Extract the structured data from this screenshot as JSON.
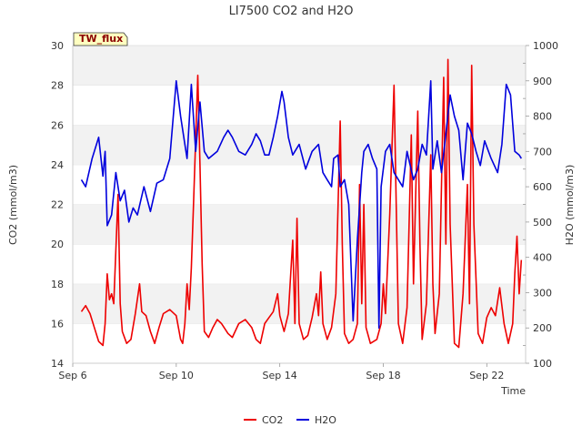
{
  "chart_data": {
    "type": "line",
    "title": "LI7500 CO2 and H2O",
    "xlabel": "Time",
    "ylabel": "CO2 (mmol/m3)",
    "y2label": "H2O (mmol/m3)",
    "site_tag": "TW_flux",
    "x_range": [
      "Sep 6",
      "Sep 23 12:00"
    ],
    "x_ticks": [
      "Sep 6",
      "Sep 10",
      "Sep 14",
      "Sep 18",
      "Sep 22"
    ],
    "ylim": [
      14,
      30
    ],
    "y_ticks": [
      14,
      16,
      18,
      20,
      22,
      24,
      26,
      28,
      30
    ],
    "y2lim": [
      100,
      1000
    ],
    "y2_ticks": [
      100,
      200,
      300,
      400,
      500,
      600,
      700,
      800,
      900,
      1000
    ],
    "grid": "alternating horizontal bands",
    "legend_position": "bottom-center",
    "series": [
      {
        "name": "CO2",
        "axis": "left",
        "color": "#ee0000",
        "points": [
          [
            "Sep 6 08:00",
            16.6
          ],
          [
            "Sep 6 12:00",
            16.9
          ],
          [
            "Sep 6 16:00",
            16.5
          ],
          [
            "Sep 6 20:00",
            15.8
          ],
          [
            "Sep 7 00:00",
            15.1
          ],
          [
            "Sep 7 04:00",
            14.9
          ],
          [
            "Sep 7 06:00",
            16.0
          ],
          [
            "Sep 7 08:00",
            18.5
          ],
          [
            "Sep 7 10:00",
            17.2
          ],
          [
            "Sep 7 12:00",
            17.5
          ],
          [
            "Sep 7 14:00",
            17.0
          ],
          [
            "Sep 7 18:00",
            22.5
          ],
          [
            "Sep 7 20:00",
            17.0
          ],
          [
            "Sep 7 22:00",
            15.6
          ],
          [
            "Sep 8 02:00",
            15.0
          ],
          [
            "Sep 8 06:00",
            15.2
          ],
          [
            "Sep 8 10:00",
            16.5
          ],
          [
            "Sep 8 14:00",
            18.0
          ],
          [
            "Sep 8 16:00",
            16.6
          ],
          [
            "Sep 8 20:00",
            16.4
          ],
          [
            "Sep 9 00:00",
            15.6
          ],
          [
            "Sep 9 04:00",
            15.0
          ],
          [
            "Sep 9 08:00",
            15.8
          ],
          [
            "Sep 9 12:00",
            16.5
          ],
          [
            "Sep 9 18:00",
            16.7
          ],
          [
            "Sep 10 00:00",
            16.4
          ],
          [
            "Sep 10 04:00",
            15.2
          ],
          [
            "Sep 10 06:00",
            15.0
          ],
          [
            "Sep 10 08:00",
            16.0
          ],
          [
            "Sep 10 10:00",
            18.0
          ],
          [
            "Sep 10 12:00",
            16.7
          ],
          [
            "Sep 10 14:00",
            18.8
          ],
          [
            "Sep 10 16:00",
            22.0
          ],
          [
            "Sep 10 20:00",
            28.5
          ],
          [
            "Sep 10 22:00",
            24.0
          ],
          [
            "Sep 11 00:00",
            19.0
          ],
          [
            "Sep 11 02:00",
            15.6
          ],
          [
            "Sep 11 06:00",
            15.3
          ],
          [
            "Sep 11 10:00",
            15.8
          ],
          [
            "Sep 11 14:00",
            16.2
          ],
          [
            "Sep 11 18:00",
            16.0
          ],
          [
            "Sep 12 00:00",
            15.5
          ],
          [
            "Sep 12 04:00",
            15.3
          ],
          [
            "Sep 12 10:00",
            16.0
          ],
          [
            "Sep 12 16:00",
            16.2
          ],
          [
            "Sep 12 22:00",
            15.8
          ],
          [
            "Sep 13 02:00",
            15.2
          ],
          [
            "Sep 13 06:00",
            15.0
          ],
          [
            "Sep 13 10:00",
            16.0
          ],
          [
            "Sep 13 14:00",
            16.3
          ],
          [
            "Sep 13 18:00",
            16.6
          ],
          [
            "Sep 13 22:00",
            17.5
          ],
          [
            "Sep 14 00:00",
            16.4
          ],
          [
            "Sep 14 04:00",
            15.6
          ],
          [
            "Sep 14 08:00",
            16.5
          ],
          [
            "Sep 14 12:00",
            20.2
          ],
          [
            "Sep 14 14:00",
            16.0
          ],
          [
            "Sep 14 16:00",
            21.3
          ],
          [
            "Sep 14 18:00",
            16.0
          ],
          [
            "Sep 14 22:00",
            15.2
          ],
          [
            "Sep 15 02:00",
            15.4
          ],
          [
            "Sep 15 06:00",
            16.3
          ],
          [
            "Sep 15 10:00",
            17.5
          ],
          [
            "Sep 15 12:00",
            16.4
          ],
          [
            "Sep 15 14:00",
            18.6
          ],
          [
            "Sep 15 16:00",
            16.0
          ],
          [
            "Sep 15 20:00",
            15.2
          ],
          [
            "Sep 16 00:00",
            15.8
          ],
          [
            "Sep 16 04:00",
            17.5
          ],
          [
            "Sep 16 08:00",
            26.2
          ],
          [
            "Sep 16 10:00",
            20.0
          ],
          [
            "Sep 16 12:00",
            15.5
          ],
          [
            "Sep 16 16:00",
            15.0
          ],
          [
            "Sep 16 20:00",
            15.2
          ],
          [
            "Sep 17 00:00",
            16.0
          ],
          [
            "Sep 17 02:00",
            23.0
          ],
          [
            "Sep 17 04:00",
            17.0
          ],
          [
            "Sep 17 06:00",
            22.0
          ],
          [
            "Sep 17 08:00",
            15.8
          ],
          [
            "Sep 17 12:00",
            15.0
          ],
          [
            "Sep 17 18:00",
            15.2
          ],
          [
            "Sep 17 22:00",
            16.0
          ],
          [
            "Sep 18 00:00",
            18.0
          ],
          [
            "Sep 18 02:00",
            16.5
          ],
          [
            "Sep 18 06:00",
            21.5
          ],
          [
            "Sep 18 10:00",
            28.0
          ],
          [
            "Sep 18 12:00",
            22.0
          ],
          [
            "Sep 18 14:00",
            16.0
          ],
          [
            "Sep 18 18:00",
            15.0
          ],
          [
            "Sep 18 22:00",
            16.8
          ],
          [
            "Sep 19 02:00",
            25.5
          ],
          [
            "Sep 19 04:00",
            18.0
          ],
          [
            "Sep 19 08:00",
            26.7
          ],
          [
            "Sep 19 10:00",
            20.0
          ],
          [
            "Sep 19 12:00",
            15.2
          ],
          [
            "Sep 19 16:00",
            17.0
          ],
          [
            "Sep 19 20:00",
            24.5
          ],
          [
            "Sep 19 22:00",
            18.0
          ],
          [
            "Sep 20 00:00",
            15.5
          ],
          [
            "Sep 20 04:00",
            17.5
          ],
          [
            "Sep 20 08:00",
            28.4
          ],
          [
            "Sep 20 10:00",
            20.0
          ],
          [
            "Sep 20 12:00",
            29.3
          ],
          [
            "Sep 20 14:00",
            21.0
          ],
          [
            "Sep 20 18:00",
            15.0
          ],
          [
            "Sep 20 22:00",
            14.8
          ],
          [
            "Sep 21 02:00",
            17.5
          ],
          [
            "Sep 21 06:00",
            23.0
          ],
          [
            "Sep 21 08:00",
            17.0
          ],
          [
            "Sep 21 10:00",
            29.0
          ],
          [
            "Sep 21 12:00",
            21.0
          ],
          [
            "Sep 21 16:00",
            15.5
          ],
          [
            "Sep 21 20:00",
            15.0
          ],
          [
            "Sep 22 00:00",
            16.3
          ],
          [
            "Sep 22 04:00",
            16.8
          ],
          [
            "Sep 22 08:00",
            16.4
          ],
          [
            "Sep 22 12:00",
            17.8
          ],
          [
            "Sep 22 16:00",
            16.0
          ],
          [
            "Sep 22 20:00",
            15.0
          ],
          [
            "Sep 23 00:00",
            16.0
          ],
          [
            "Sep 23 02:00",
            18.5
          ],
          [
            "Sep 23 04:00",
            20.4
          ],
          [
            "Sep 23 06:00",
            17.5
          ],
          [
            "Sep 23 08:00",
            19.2
          ]
        ]
      },
      {
        "name": "H2O",
        "axis": "right",
        "color": "#0000dd",
        "points": [
          [
            "Sep 6 08:00",
            620
          ],
          [
            "Sep 6 12:00",
            600
          ],
          [
            "Sep 6 18:00",
            680
          ],
          [
            "Sep 7 00:00",
            740
          ],
          [
            "Sep 7 04:00",
            630
          ],
          [
            "Sep 7 06:00",
            700
          ],
          [
            "Sep 7 08:00",
            490
          ],
          [
            "Sep 7 12:00",
            520
          ],
          [
            "Sep 7 16:00",
            640
          ],
          [
            "Sep 7 20:00",
            560
          ],
          [
            "Sep 8 00:00",
            590
          ],
          [
            "Sep 8 04:00",
            500
          ],
          [
            "Sep 8 08:00",
            540
          ],
          [
            "Sep 8 12:00",
            520
          ],
          [
            "Sep 8 18:00",
            600
          ],
          [
            "Sep 9 00:00",
            530
          ],
          [
            "Sep 9 06:00",
            610
          ],
          [
            "Sep 9 12:00",
            620
          ],
          [
            "Sep 9 18:00",
            680
          ],
          [
            "Sep 10 00:00",
            900
          ],
          [
            "Sep 10 04:00",
            800
          ],
          [
            "Sep 10 08:00",
            720
          ],
          [
            "Sep 10 10:00",
            680
          ],
          [
            "Sep 10 14:00",
            890
          ],
          [
            "Sep 10 18:00",
            700
          ],
          [
            "Sep 10 22:00",
            840
          ],
          [
            "Sep 11 02:00",
            700
          ],
          [
            "Sep 11 06:00",
            680
          ],
          [
            "Sep 11 10:00",
            690
          ],
          [
            "Sep 11 14:00",
            700
          ],
          [
            "Sep 11 20:00",
            740
          ],
          [
            "Sep 12 00:00",
            760
          ],
          [
            "Sep 12 04:00",
            740
          ],
          [
            "Sep 12 10:00",
            700
          ],
          [
            "Sep 12 16:00",
            690
          ],
          [
            "Sep 12 22:00",
            720
          ],
          [
            "Sep 13 02:00",
            750
          ],
          [
            "Sep 13 06:00",
            730
          ],
          [
            "Sep 13 10:00",
            690
          ],
          [
            "Sep 13 14:00",
            690
          ],
          [
            "Sep 13 18:00",
            740
          ],
          [
            "Sep 13 22:00",
            800
          ],
          [
            "Sep 14 02:00",
            870
          ],
          [
            "Sep 14 04:00",
            840
          ],
          [
            "Sep 14 08:00",
            740
          ],
          [
            "Sep 14 12:00",
            690
          ],
          [
            "Sep 14 18:00",
            720
          ],
          [
            "Sep 15 00:00",
            650
          ],
          [
            "Sep 15 06:00",
            700
          ],
          [
            "Sep 15 12:00",
            720
          ],
          [
            "Sep 15 16:00",
            640
          ],
          [
            "Sep 15 20:00",
            620
          ],
          [
            "Sep 16 00:00",
            600
          ],
          [
            "Sep 16 02:00",
            680
          ],
          [
            "Sep 16 06:00",
            690
          ],
          [
            "Sep 16 08:00",
            600
          ],
          [
            "Sep 16 12:00",
            620
          ],
          [
            "Sep 16 16:00",
            550
          ],
          [
            "Sep 16 20:00",
            220
          ],
          [
            "Sep 17 00:00",
            450
          ],
          [
            "Sep 17 04:00",
            640
          ],
          [
            "Sep 17 06:00",
            700
          ],
          [
            "Sep 17 10:00",
            720
          ],
          [
            "Sep 17 14:00",
            680
          ],
          [
            "Sep 17 18:00",
            650
          ],
          [
            "Sep 17 20:00",
            200
          ],
          [
            "Sep 17 22:00",
            600
          ],
          [
            "Sep 18 02:00",
            700
          ],
          [
            "Sep 18 06:00",
            720
          ],
          [
            "Sep 18 10:00",
            640
          ],
          [
            "Sep 18 14:00",
            620
          ],
          [
            "Sep 18 18:00",
            600
          ],
          [
            "Sep 18 22:00",
            700
          ],
          [
            "Sep 19 04:00",
            620
          ],
          [
            "Sep 19 08:00",
            650
          ],
          [
            "Sep 19 12:00",
            720
          ],
          [
            "Sep 19 16:00",
            690
          ],
          [
            "Sep 19 20:00",
            900
          ],
          [
            "Sep 19 22:00",
            650
          ],
          [
            "Sep 20 02:00",
            730
          ],
          [
            "Sep 20 06:00",
            640
          ],
          [
            "Sep 20 10:00",
            750
          ],
          [
            "Sep 20 14:00",
            860
          ],
          [
            "Sep 20 18:00",
            800
          ],
          [
            "Sep 20 22:00",
            760
          ],
          [
            "Sep 21 02:00",
            620
          ],
          [
            "Sep 21 06:00",
            780
          ],
          [
            "Sep 21 10:00",
            750
          ],
          [
            "Sep 21 14:00",
            700
          ],
          [
            "Sep 21 18:00",
            660
          ],
          [
            "Sep 21 22:00",
            730
          ],
          [
            "Sep 22 04:00",
            680
          ],
          [
            "Sep 22 10:00",
            640
          ],
          [
            "Sep 22 14:00",
            720
          ],
          [
            "Sep 22 18:00",
            890
          ],
          [
            "Sep 22 22:00",
            860
          ],
          [
            "Sep 23 02:00",
            700
          ],
          [
            "Sep 23 06:00",
            690
          ],
          [
            "Sep 23 08:00",
            680
          ]
        ]
      }
    ]
  }
}
